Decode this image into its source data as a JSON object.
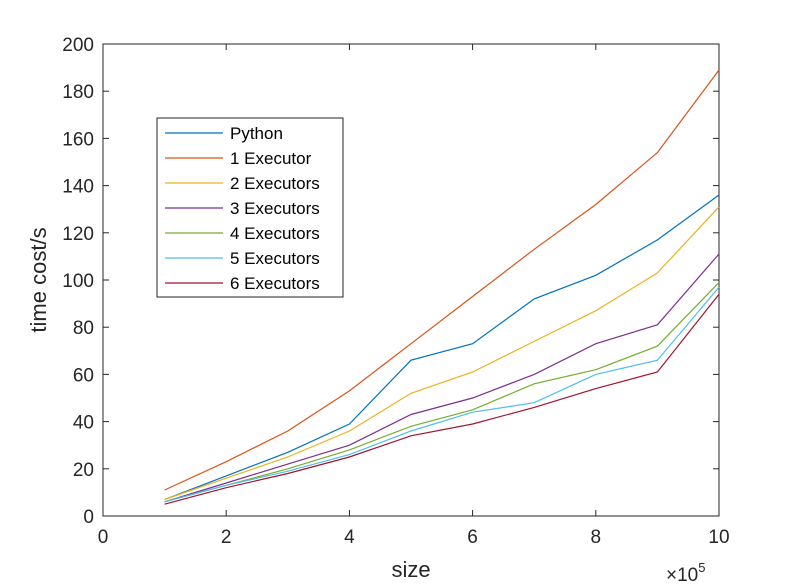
{
  "chart_data": {
    "type": "line",
    "title": "",
    "xlabel": "size",
    "ylabel": "time cost/s",
    "x_multiplier_base": "×10",
    "x_multiplier_exp": "5",
    "xlim": [
      0,
      10
    ],
    "ylim": [
      0,
      200
    ],
    "x_ticks": [
      0,
      2,
      4,
      6,
      8,
      10
    ],
    "y_ticks": [
      0,
      20,
      40,
      60,
      80,
      100,
      120,
      140,
      160,
      180,
      200
    ],
    "grid": false,
    "legend_position": "top-left",
    "x": [
      1,
      2,
      3,
      4,
      5,
      6,
      7,
      8,
      9,
      10
    ],
    "series": [
      {
        "name": "Python",
        "color": "#0072BD",
        "values": [
          7,
          17,
          27,
          39,
          66,
          73,
          92,
          102,
          117,
          136
        ]
      },
      {
        "name": "1 Executor",
        "color": "#D95319",
        "values": [
          11,
          23,
          36,
          53,
          73,
          93,
          113,
          132,
          154,
          189
        ]
      },
      {
        "name": "2 Executors",
        "color": "#EDB120",
        "values": [
          7,
          16,
          25,
          36,
          52,
          61,
          74,
          87,
          103,
          131
        ]
      },
      {
        "name": "3 Executors",
        "color": "#7E2F8E",
        "values": [
          6,
          14,
          22,
          30,
          43,
          50,
          60,
          73,
          81,
          111
        ]
      },
      {
        "name": "4 Executors",
        "color": "#77AC30",
        "values": [
          6,
          13,
          20,
          28,
          38,
          45,
          56,
          62,
          72,
          99
        ]
      },
      {
        "name": "5 Executors",
        "color": "#4DBEEE",
        "values": [
          6,
          13,
          19,
          26,
          36,
          44,
          48,
          60,
          66,
          97
        ]
      },
      {
        "name": "6 Executors",
        "color": "#A2142F",
        "values": [
          5,
          12,
          18,
          25,
          34,
          39,
          46,
          54,
          61,
          94
        ]
      }
    ]
  }
}
